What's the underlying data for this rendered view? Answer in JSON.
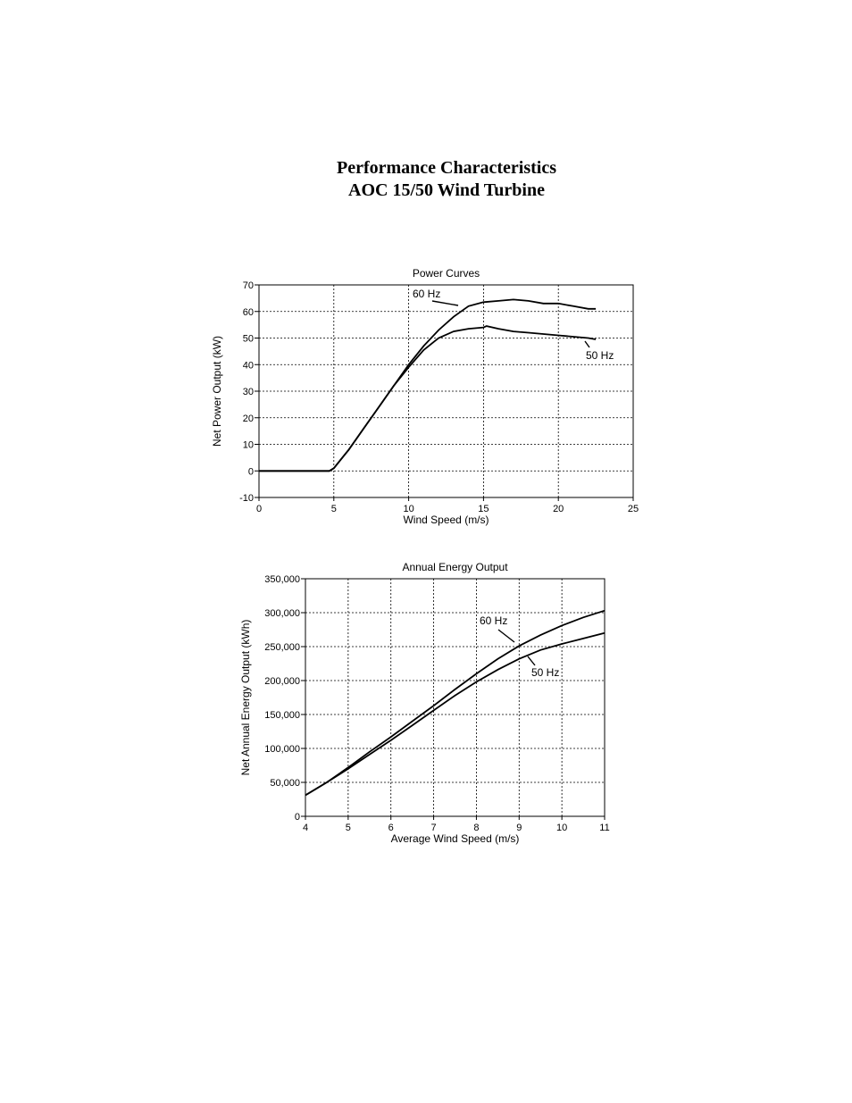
{
  "header": {
    "title_line1": "Performance Characteristics",
    "title_line2": "AOC 15/50 Wind Turbine"
  },
  "chart_data": [
    {
      "type": "line",
      "title": "Power Curves",
      "xlabel": "Wind Speed (m/s)",
      "ylabel": "Net Power Output (kW)",
      "xlim": [
        0,
        25
      ],
      "ylim": [
        -10,
        70
      ],
      "xticks": [
        "0",
        "5",
        "10",
        "15",
        "20",
        "25"
      ],
      "yticks": [
        "70",
        "60",
        "50",
        "40",
        "30",
        "20",
        "10",
        "0",
        "-10"
      ],
      "grid": true,
      "series": [
        {
          "name": "60 Hz",
          "x": [
            0,
            4,
            4.7,
            5,
            6,
            7,
            8,
            9,
            10,
            11,
            12,
            13,
            14,
            15,
            16,
            17,
            18,
            19,
            20,
            21,
            22,
            22.5
          ],
          "y": [
            0,
            0,
            0,
            1,
            8,
            16,
            24,
            32,
            40,
            47,
            53,
            58,
            62,
            63.5,
            64,
            64.5,
            64,
            63,
            63,
            62,
            61,
            61
          ]
        },
        {
          "name": "50 Hz",
          "x": [
            0,
            4,
            4.7,
            5,
            6,
            7,
            8,
            9,
            10,
            11,
            12,
            13,
            14,
            15,
            15.2,
            16,
            17,
            18,
            19,
            20,
            21,
            22,
            22.5
          ],
          "y": [
            0,
            0,
            0,
            1,
            8,
            16,
            24,
            32,
            39,
            45.5,
            50,
            52.5,
            53.5,
            54,
            54.5,
            53.5,
            52.5,
            52,
            51.5,
            51,
            50.5,
            50,
            49.5
          ]
        }
      ]
    },
    {
      "type": "line",
      "title": "Annual Energy Output",
      "xlabel": "Average Wind Speed (m/s)",
      "ylabel": "Net Annual Energy Output (kWh)",
      "xlim": [
        4,
        11
      ],
      "ylim": [
        0,
        350000
      ],
      "xticks": [
        "4",
        "5",
        "6",
        "7",
        "8",
        "9",
        "10",
        "11"
      ],
      "yticks": [
        "350,000",
        "300,000",
        "250,000",
        "200,000",
        "150,000",
        "100,000",
        "50,000",
        "0"
      ],
      "grid": true,
      "series": [
        {
          "name": "60 Hz",
          "x": [
            4,
            4.5,
            5,
            5.5,
            6,
            6.5,
            7,
            7.5,
            8,
            8.5,
            9,
            9.5,
            10,
            10.5,
            11
          ],
          "y": [
            31000,
            50000,
            72000,
            95000,
            117000,
            140000,
            163000,
            187000,
            210000,
            232000,
            251000,
            267000,
            281000,
            293000,
            303000
          ]
        },
        {
          "name": "50 Hz",
          "x": [
            4,
            4.5,
            5,
            5.5,
            6,
            6.5,
            7,
            7.5,
            8,
            8.5,
            9,
            9.5,
            10,
            10.5,
            11
          ],
          "y": [
            31000,
            50000,
            70000,
            91000,
            112000,
            134000,
            156000,
            178000,
            198000,
            216000,
            232000,
            245000,
            254000,
            262000,
            270000
          ]
        }
      ]
    }
  ]
}
